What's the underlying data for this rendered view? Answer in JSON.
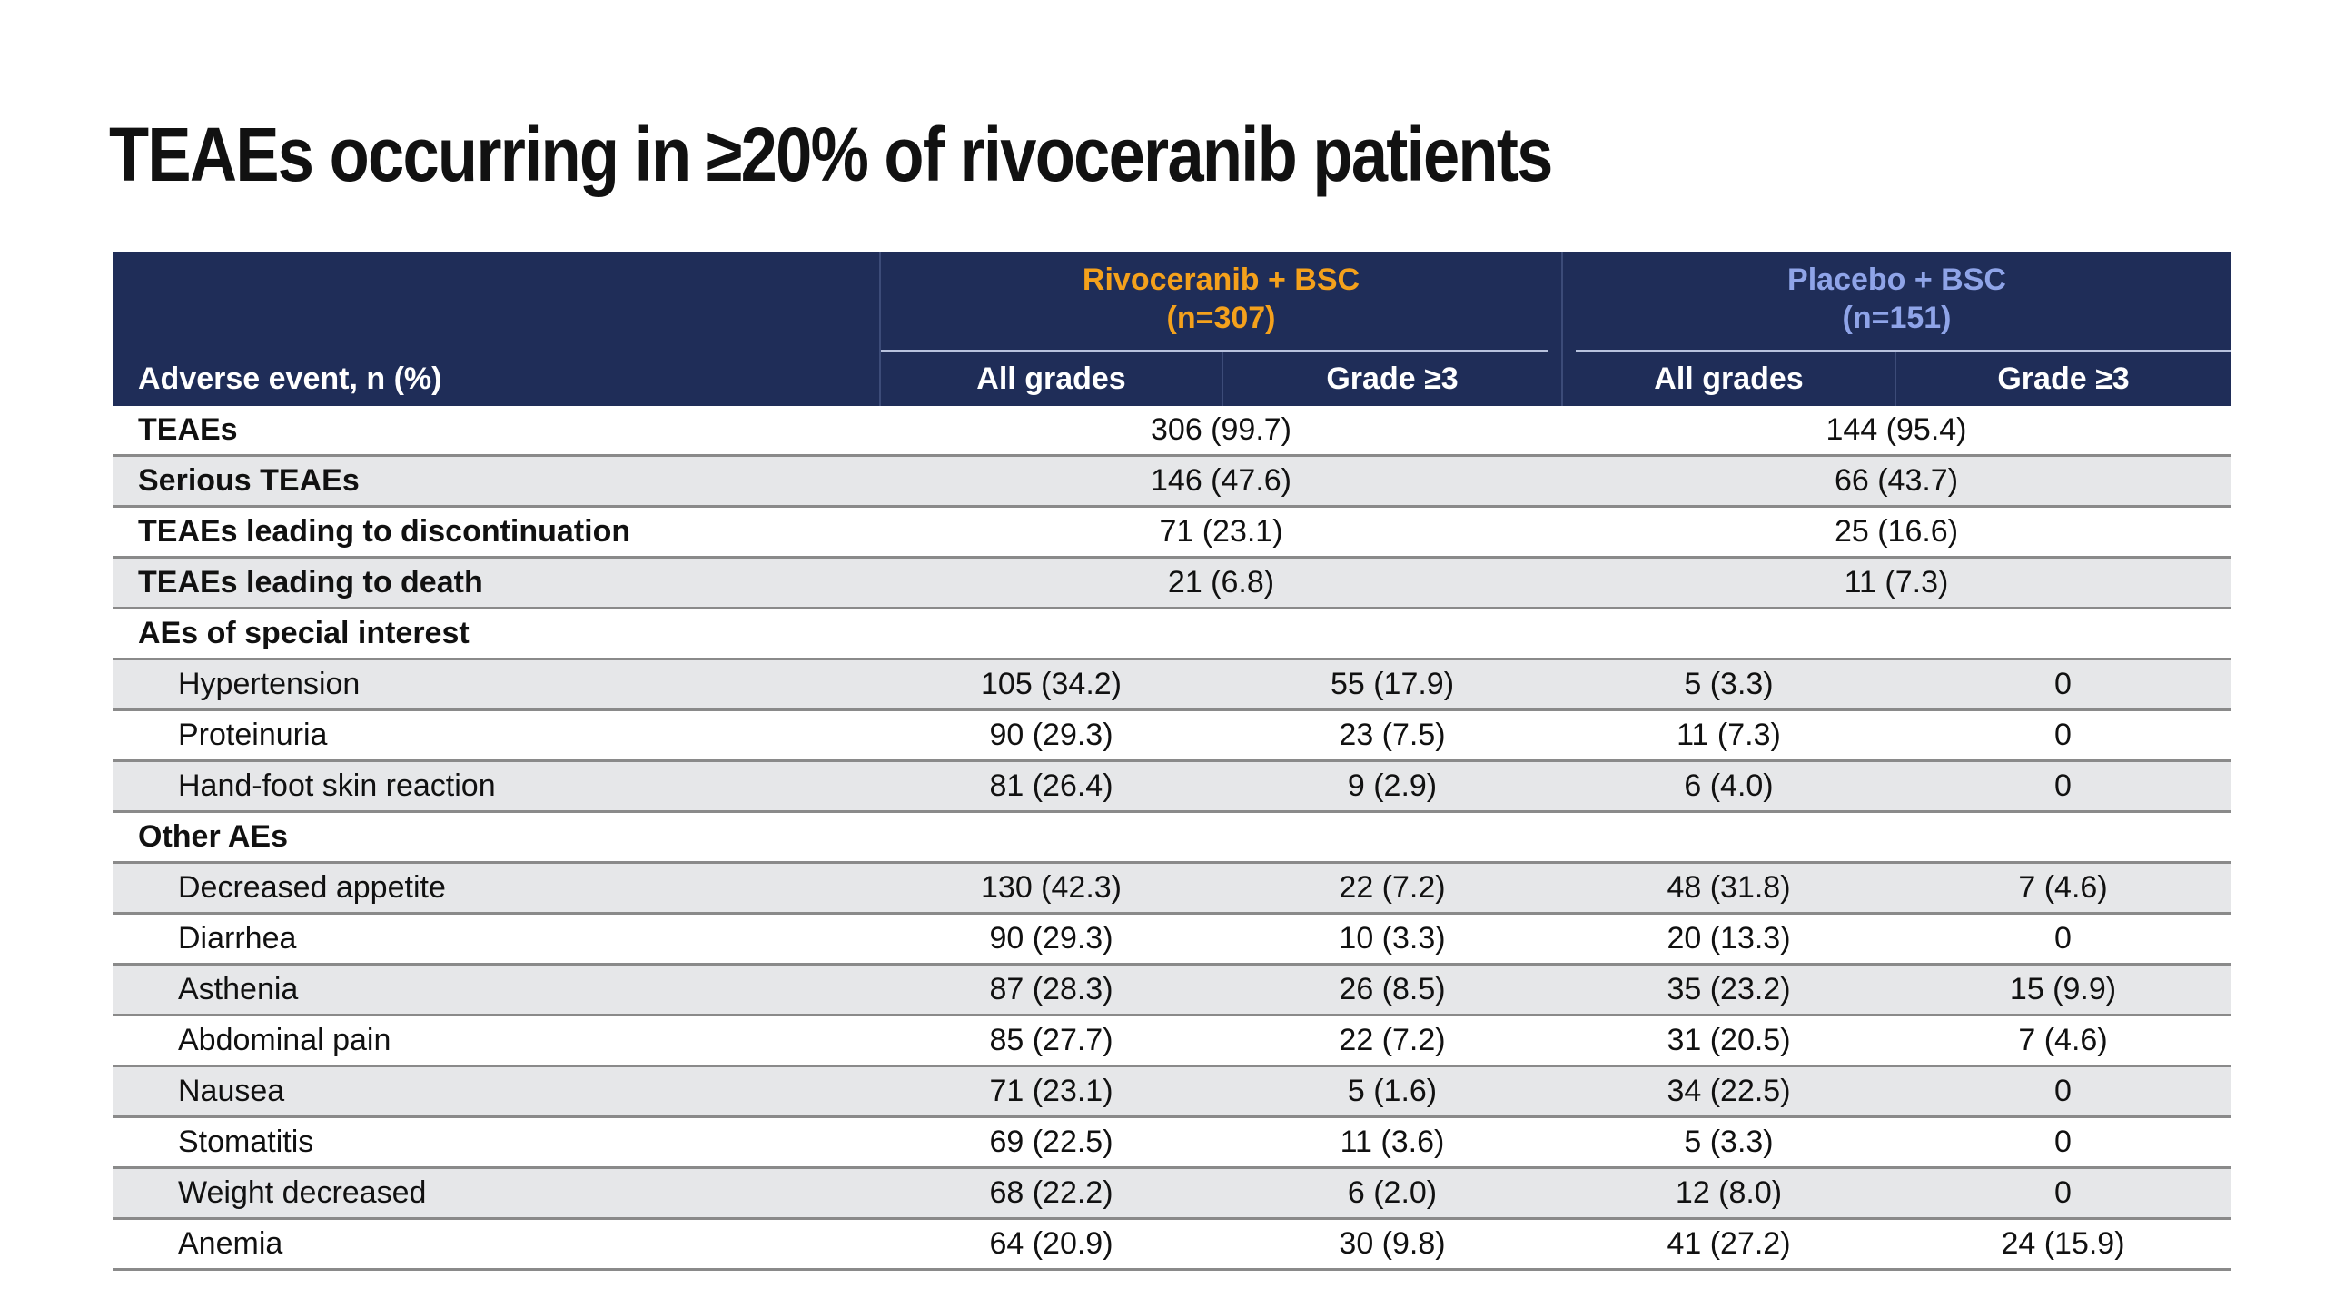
{
  "title": "TEAEs occurring in ≥20% of rivoceranib patients",
  "header": {
    "event_col": "Adverse event, n (%)",
    "rivo_line1": "Rivoceranib + BSC",
    "rivo_line2": "(n=307)",
    "placebo_line1": "Placebo + BSC",
    "placebo_line2": "(n=151)",
    "all_grades": "All grades",
    "grade3": "Grade ≥3",
    "rivo_color": "#f4a11c",
    "placebo_color": "#8fa4e8",
    "header_bg": "#1f2d58"
  },
  "summary_rows": [
    {
      "event": "TEAEs",
      "rivo": "306 (99.7)",
      "placebo": "144 (95.4)"
    },
    {
      "event": "Serious TEAEs",
      "rivo": "146 (47.6)",
      "placebo": "66 (43.7)"
    },
    {
      "event": "TEAEs leading to discontinuation",
      "rivo": "71 (23.1)",
      "placebo": "25 (16.6)"
    },
    {
      "event": "TEAEs leading to death",
      "rivo": "21 (6.8)",
      "placebo": "11 (7.3)"
    }
  ],
  "special_interest": {
    "label": "AEs of special interest",
    "rows": [
      {
        "event": "Hypertension",
        "r_all": "105 (34.2)",
        "r_g3": "55 (17.9)",
        "p_all": "5 (3.3)",
        "p_g3": "0"
      },
      {
        "event": "Proteinuria",
        "r_all": "90 (29.3)",
        "r_g3": "23 (7.5)",
        "p_all": "11 (7.3)",
        "p_g3": "0"
      },
      {
        "event": "Hand-foot skin reaction",
        "r_all": "81 (26.4)",
        "r_g3": "9 (2.9)",
        "p_all": "6 (4.0)",
        "p_g3": "0"
      }
    ]
  },
  "other": {
    "label": "Other AEs",
    "rows": [
      {
        "event": "Decreased appetite",
        "r_all": "130 (42.3)",
        "r_g3": "22 (7.2)",
        "p_all": "48 (31.8)",
        "p_g3": "7 (4.6)"
      },
      {
        "event": "Diarrhea",
        "r_all": "90 (29.3)",
        "r_g3": "10 (3.3)",
        "p_all": "20 (13.3)",
        "p_g3": "0"
      },
      {
        "event": "Asthenia",
        "r_all": "87 (28.3)",
        "r_g3": "26 (8.5)",
        "p_all": "35 (23.2)",
        "p_g3": "15 (9.9)"
      },
      {
        "event": "Abdominal pain",
        "r_all": "85 (27.7)",
        "r_g3": "22 (7.2)",
        "p_all": "31 (20.5)",
        "p_g3": "7 (4.6)"
      },
      {
        "event": "Nausea",
        "r_all": "71 (23.1)",
        "r_g3": "5 (1.6)",
        "p_all": "34 (22.5)",
        "p_g3": "0"
      },
      {
        "event": "Stomatitis",
        "r_all": "69 (22.5)",
        "r_g3": "11 (3.6)",
        "p_all": "5 (3.3)",
        "p_g3": "0"
      },
      {
        "event": "Weight decreased",
        "r_all": "68 (22.2)",
        "r_g3": "6 (2.0)",
        "p_all": "12 (8.0)",
        "p_g3": "0"
      },
      {
        "event": "Anemia",
        "r_all": "64 (20.9)",
        "r_g3": "30 (9.8)",
        "p_all": "41 (27.2)",
        "p_g3": "24 (15.9)"
      }
    ]
  }
}
